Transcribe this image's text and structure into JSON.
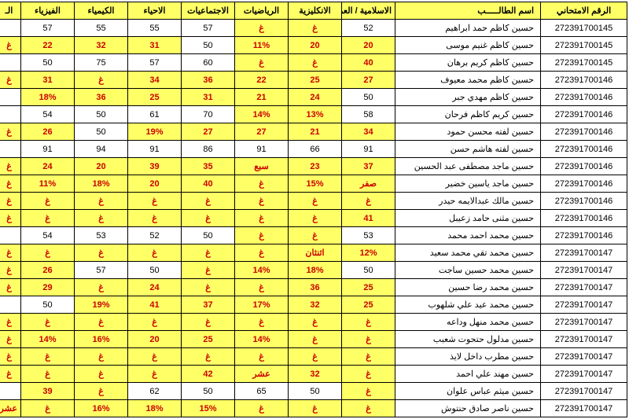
{
  "headers": [
    "الرقم الامتحاني",
    "اسم الطالـــــب",
    "الاسلامية / العربية",
    "الانكليزية",
    "الرياضيات",
    "الاجتماعيات",
    "الاحياء",
    "الكيمياء",
    "الفيزياء",
    "الـ"
  ],
  "rows": [
    {
      "exam": "272391700145",
      "name": "حسين كاظم حمد ابراهيم",
      "cells": [
        {
          "v": "52",
          "f": 0
        },
        {
          "v": "غ",
          "f": 1
        },
        {
          "v": "غ",
          "f": 1
        },
        {
          "v": "57",
          "f": 0
        },
        {
          "v": "55",
          "f": 0
        },
        {
          "v": "55",
          "f": 0
        },
        {
          "v": "57",
          "f": 0
        },
        {
          "v": "",
          "f": 0
        }
      ]
    },
    {
      "exam": "272391700145",
      "name": "حسين كاظم غنيم موسى",
      "cells": [
        {
          "v": "20",
          "f": 1
        },
        {
          "v": "20",
          "f": 1
        },
        {
          "v": "11%",
          "f": 1
        },
        {
          "v": "50",
          "f": 0
        },
        {
          "v": "31",
          "f": 1
        },
        {
          "v": "32",
          "f": 1
        },
        {
          "v": "22",
          "f": 1
        },
        {
          "v": "غ",
          "f": 1
        }
      ]
    },
    {
      "exam": "272391700145",
      "name": "حسين كاظم كريم برهان",
      "cells": [
        {
          "v": "40",
          "f": 1
        },
        {
          "v": "غ",
          "f": 1
        },
        {
          "v": "غ",
          "f": 1
        },
        {
          "v": "60",
          "f": 0
        },
        {
          "v": "57",
          "f": 0
        },
        {
          "v": "75",
          "f": 0
        },
        {
          "v": "50",
          "f": 0
        },
        {
          "v": "",
          "f": 0
        }
      ]
    },
    {
      "exam": "272391700146",
      "name": "حسين كاظم محمد معيوف",
      "cells": [
        {
          "v": "27",
          "f": 1
        },
        {
          "v": "25",
          "f": 1
        },
        {
          "v": "22",
          "f": 1
        },
        {
          "v": "36",
          "f": 1
        },
        {
          "v": "34",
          "f": 1
        },
        {
          "v": "غ",
          "f": 1
        },
        {
          "v": "31",
          "f": 1
        },
        {
          "v": "غ",
          "f": 1
        }
      ]
    },
    {
      "exam": "272391700146",
      "name": "حسين كاظم مهدي جبر",
      "cells": [
        {
          "v": "50",
          "f": 0
        },
        {
          "v": "24",
          "f": 1
        },
        {
          "v": "21",
          "f": 1
        },
        {
          "v": "31",
          "f": 1
        },
        {
          "v": "25",
          "f": 1
        },
        {
          "v": "36",
          "f": 1
        },
        {
          "v": "18%",
          "f": 1
        },
        {
          "v": "",
          "f": 0
        }
      ]
    },
    {
      "exam": "272391700146",
      "name": "حسين كريم كاظم فرحان",
      "cells": [
        {
          "v": "58",
          "f": 0
        },
        {
          "v": "13%",
          "f": 1
        },
        {
          "v": "14%",
          "f": 1
        },
        {
          "v": "70",
          "f": 0
        },
        {
          "v": "61",
          "f": 0
        },
        {
          "v": "50",
          "f": 0
        },
        {
          "v": "54",
          "f": 0
        },
        {
          "v": "",
          "f": 0
        }
      ]
    },
    {
      "exam": "272391700146",
      "name": "حسين لفته محسن حمود",
      "cells": [
        {
          "v": "34",
          "f": 1
        },
        {
          "v": "21",
          "f": 1
        },
        {
          "v": "27",
          "f": 1
        },
        {
          "v": "27",
          "f": 1
        },
        {
          "v": "19%",
          "f": 1
        },
        {
          "v": "50",
          "f": 0
        },
        {
          "v": "26",
          "f": 1
        },
        {
          "v": "غ",
          "f": 1
        }
      ]
    },
    {
      "exam": "272391700146",
      "name": "حسين لفته هاشم حسن",
      "cells": [
        {
          "v": "91",
          "f": 0
        },
        {
          "v": "66",
          "f": 0
        },
        {
          "v": "91",
          "f": 0
        },
        {
          "v": "86",
          "f": 0
        },
        {
          "v": "91",
          "f": 0
        },
        {
          "v": "94",
          "f": 0
        },
        {
          "v": "91",
          "f": 0
        },
        {
          "v": "",
          "f": 0
        }
      ]
    },
    {
      "exam": "272391700146",
      "name": "حسين ماجد مصطفى عبد الحسين",
      "cells": [
        {
          "v": "37",
          "f": 1
        },
        {
          "v": "23",
          "f": 1
        },
        {
          "v": "سبع",
          "f": 1
        },
        {
          "v": "35",
          "f": 1
        },
        {
          "v": "39",
          "f": 1
        },
        {
          "v": "20",
          "f": 1
        },
        {
          "v": "24",
          "f": 1
        },
        {
          "v": "غ",
          "f": 1
        }
      ]
    },
    {
      "exam": "272391700146",
      "name": "حسين ماجد ياسين خضير",
      "cells": [
        {
          "v": "صفر",
          "f": 1
        },
        {
          "v": "15%",
          "f": 1
        },
        {
          "v": "غ",
          "f": 1
        },
        {
          "v": "40",
          "f": 1
        },
        {
          "v": "20",
          "f": 1
        },
        {
          "v": "18%",
          "f": 1
        },
        {
          "v": "11%",
          "f": 1
        },
        {
          "v": "غ",
          "f": 1
        }
      ]
    },
    {
      "exam": "272391700146",
      "name": "حسين مالك عبدالايمه حيدر",
      "cells": [
        {
          "v": "غ",
          "f": 1
        },
        {
          "v": "غ",
          "f": 1
        },
        {
          "v": "غ",
          "f": 1
        },
        {
          "v": "غ",
          "f": 1
        },
        {
          "v": "غ",
          "f": 1
        },
        {
          "v": "غ",
          "f": 1
        },
        {
          "v": "غ",
          "f": 1
        },
        {
          "v": "غ",
          "f": 1
        }
      ]
    },
    {
      "exam": "272391700146",
      "name": "حسين مثنى حامد زعيبل",
      "cells": [
        {
          "v": "41",
          "f": 1
        },
        {
          "v": "غ",
          "f": 1
        },
        {
          "v": "غ",
          "f": 1
        },
        {
          "v": "غ",
          "f": 1
        },
        {
          "v": "غ",
          "f": 1
        },
        {
          "v": "غ",
          "f": 1
        },
        {
          "v": "غ",
          "f": 1
        },
        {
          "v": "غ",
          "f": 1
        }
      ]
    },
    {
      "exam": "272391700146",
      "name": "حسين محمد احمد محمد",
      "cells": [
        {
          "v": "53",
          "f": 0
        },
        {
          "v": "غ",
          "f": 1
        },
        {
          "v": "غ",
          "f": 1
        },
        {
          "v": "50",
          "f": 0
        },
        {
          "v": "52",
          "f": 0
        },
        {
          "v": "53",
          "f": 0
        },
        {
          "v": "54",
          "f": 0
        },
        {
          "v": "",
          "f": 0
        }
      ]
    },
    {
      "exam": "272391700147",
      "name": "حسين محمد تقي محمد سعيد",
      "cells": [
        {
          "v": "12%",
          "f": 1
        },
        {
          "v": "اثنثان",
          "f": 1
        },
        {
          "v": "غ",
          "f": 1
        },
        {
          "v": "غ",
          "f": 1
        },
        {
          "v": "غ",
          "f": 1
        },
        {
          "v": "غ",
          "f": 1
        },
        {
          "v": "غ",
          "f": 1
        },
        {
          "v": "غ",
          "f": 1
        }
      ]
    },
    {
      "exam": "272391700147",
      "name": "حسين محمد حسين ساجت",
      "cells": [
        {
          "v": "50",
          "f": 0
        },
        {
          "v": "18%",
          "f": 1
        },
        {
          "v": "14%",
          "f": 1
        },
        {
          "v": "غ",
          "f": 1
        },
        {
          "v": "50",
          "f": 0
        },
        {
          "v": "57",
          "f": 0
        },
        {
          "v": "26",
          "f": 1
        },
        {
          "v": "غ",
          "f": 1
        }
      ]
    },
    {
      "exam": "272391700147",
      "name": "حسين محمد رضا حسين",
      "cells": [
        {
          "v": "25",
          "f": 1
        },
        {
          "v": "36",
          "f": 1
        },
        {
          "v": "غ",
          "f": 1
        },
        {
          "v": "غ",
          "f": 1
        },
        {
          "v": "24",
          "f": 1
        },
        {
          "v": "غ",
          "f": 1
        },
        {
          "v": "29",
          "f": 1
        },
        {
          "v": "غ",
          "f": 1
        }
      ]
    },
    {
      "exam": "272391700147",
      "name": "حسين محمد عيد علي شلهوب",
      "cells": [
        {
          "v": "25",
          "f": 1
        },
        {
          "v": "32",
          "f": 1
        },
        {
          "v": "17%",
          "f": 1
        },
        {
          "v": "37",
          "f": 1
        },
        {
          "v": "41",
          "f": 1
        },
        {
          "v": "19%",
          "f": 1
        },
        {
          "v": "50",
          "f": 0
        },
        {
          "v": "",
          "f": 0
        }
      ]
    },
    {
      "exam": "272391700147",
      "name": "حسين محمد منهل وداعه",
      "cells": [
        {
          "v": "غ",
          "f": 1
        },
        {
          "v": "غ",
          "f": 1
        },
        {
          "v": "غ",
          "f": 1
        },
        {
          "v": "غ",
          "f": 1
        },
        {
          "v": "غ",
          "f": 1
        },
        {
          "v": "غ",
          "f": 1
        },
        {
          "v": "غ",
          "f": 1
        },
        {
          "v": "غ",
          "f": 1
        }
      ]
    },
    {
      "exam": "272391700147",
      "name": "حسين مدلول حتحوت شعبب",
      "cells": [
        {
          "v": "غ",
          "f": 1
        },
        {
          "v": "غ",
          "f": 1
        },
        {
          "v": "14%",
          "f": 1
        },
        {
          "v": "25",
          "f": 1
        },
        {
          "v": "20",
          "f": 1
        },
        {
          "v": "16%",
          "f": 1
        },
        {
          "v": "14%",
          "f": 1
        },
        {
          "v": "غ",
          "f": 1
        }
      ]
    },
    {
      "exam": "272391700147",
      "name": "حسين مطرب داخل لايذ",
      "cells": [
        {
          "v": "غ",
          "f": 1
        },
        {
          "v": "غ",
          "f": 1
        },
        {
          "v": "غ",
          "f": 1
        },
        {
          "v": "غ",
          "f": 1
        },
        {
          "v": "غ",
          "f": 1
        },
        {
          "v": "غ",
          "f": 1
        },
        {
          "v": "غ",
          "f": 1
        },
        {
          "v": "غ",
          "f": 1
        }
      ]
    },
    {
      "exam": "272391700147",
      "name": "حسين مهند علي احمد",
      "cells": [
        {
          "v": "غ",
          "f": 1
        },
        {
          "v": "32",
          "f": 1
        },
        {
          "v": "عشر",
          "f": 1
        },
        {
          "v": "42",
          "f": 1
        },
        {
          "v": "غ",
          "f": 1
        },
        {
          "v": "غ",
          "f": 1
        },
        {
          "v": "غ",
          "f": 1
        },
        {
          "v": "غ",
          "f": 1
        }
      ]
    },
    {
      "exam": "272391700147",
      "name": "حسين ميثم عباس علوان",
      "cells": [
        {
          "v": "غ",
          "f": 1
        },
        {
          "v": "50",
          "f": 0
        },
        {
          "v": "65",
          "f": 0
        },
        {
          "v": "50",
          "f": 0
        },
        {
          "v": "62",
          "f": 0
        },
        {
          "v": "غ",
          "f": 1
        },
        {
          "v": "39",
          "f": 1
        },
        {
          "v": "",
          "f": 0
        }
      ]
    },
    {
      "exam": "272391700147",
      "name": "حسين ناصر صادق حنتوش",
      "cells": [
        {
          "v": "غ",
          "f": 1
        },
        {
          "v": "غ",
          "f": 1
        },
        {
          "v": "غ",
          "f": 1
        },
        {
          "v": "15%",
          "f": 1
        },
        {
          "v": "18%",
          "f": 1
        },
        {
          "v": "16%",
          "f": 1
        },
        {
          "v": "غ",
          "f": 1
        },
        {
          "v": "عشر",
          "f": 1
        }
      ]
    }
  ]
}
